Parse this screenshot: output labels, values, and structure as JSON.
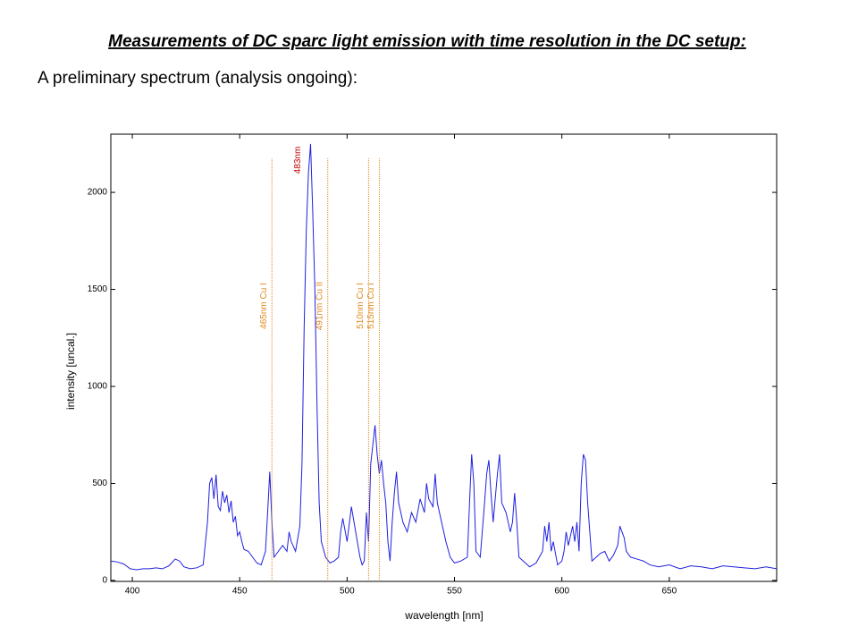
{
  "chart_data": {
    "type": "line",
    "title": "Measurements of DC sparc light emission with time resolution in the DC setup:",
    "subtitle": "A preliminary spectrum (analysis ongoing):",
    "x_label": "wavelength [nm]",
    "y_label": "intensity [uncal.]",
    "xlim": [
      390,
      700
    ],
    "ylim": [
      -5,
      2300
    ],
    "xticks": [
      400,
      450,
      500,
      550,
      600,
      650
    ],
    "yticks": [
      0,
      500,
      1000,
      1500,
      2000
    ],
    "x": [
      390,
      393,
      396,
      399,
      402,
      405,
      408,
      411,
      414,
      417,
      420,
      422,
      424,
      427,
      430,
      433,
      435,
      436,
      437,
      438,
      439,
      440,
      441,
      442,
      443,
      444,
      445,
      446,
      447,
      448,
      449,
      450,
      451,
      452,
      454,
      456,
      458,
      460,
      462,
      463,
      464,
      465,
      466,
      468,
      470,
      472,
      473,
      474,
      476,
      478,
      479,
      480,
      481,
      482,
      483,
      484,
      485,
      486,
      487,
      488,
      490,
      492,
      494,
      496,
      497,
      498,
      500,
      502,
      504,
      506,
      507,
      508,
      509,
      510,
      511,
      512,
      513,
      514,
      515,
      516,
      517,
      518,
      519,
      520,
      521,
      522,
      523,
      524,
      526,
      528,
      530,
      532,
      534,
      536,
      537,
      538,
      540,
      541,
      542,
      544,
      546,
      548,
      550,
      553,
      556,
      557,
      558,
      559,
      560,
      562,
      564,
      565,
      566,
      567,
      568,
      570,
      571,
      572,
      574,
      576,
      577,
      578,
      579,
      580,
      582,
      585,
      588,
      591,
      592,
      593,
      594,
      595,
      596,
      598,
      600,
      601,
      602,
      603,
      605,
      606,
      607,
      608,
      609,
      610,
      611,
      612,
      613,
      614,
      616,
      618,
      620,
      622,
      624,
      626,
      627,
      628,
      629,
      630,
      632,
      635,
      638,
      641,
      645,
      650,
      655,
      660,
      665,
      670,
      675,
      680,
      685,
      690,
      695,
      700
    ],
    "series": [
      {
        "color": "#2020e0",
        "values": [
          100,
          95,
          85,
          60,
          55,
          60,
          60,
          65,
          60,
          75,
          110,
          100,
          70,
          60,
          65,
          80,
          300,
          500,
          530,
          420,
          545,
          380,
          360,
          460,
          400,
          440,
          350,
          410,
          300,
          330,
          230,
          250,
          200,
          160,
          150,
          120,
          90,
          80,
          150,
          350,
          560,
          300,
          120,
          150,
          180,
          150,
          250,
          200,
          150,
          280,
          600,
          1300,
          1800,
          2100,
          2250,
          1900,
          1500,
          900,
          400,
          200,
          120,
          90,
          100,
          120,
          250,
          320,
          200,
          380,
          250,
          120,
          80,
          100,
          350,
          200,
          600,
          700,
          800,
          650,
          550,
          620,
          500,
          400,
          200,
          100,
          300,
          450,
          560,
          400,
          300,
          250,
          350,
          300,
          420,
          350,
          500,
          420,
          380,
          550,
          400,
          300,
          200,
          120,
          90,
          100,
          120,
          400,
          650,
          500,
          150,
          120,
          400,
          550,
          620,
          450,
          300,
          550,
          650,
          400,
          350,
          250,
          300,
          450,
          300,
          120,
          100,
          70,
          90,
          150,
          280,
          200,
          300,
          150,
          200,
          80,
          100,
          150,
          250,
          180,
          280,
          200,
          300,
          150,
          500,
          650,
          620,
          400,
          250,
          100,
          120,
          140,
          150,
          100,
          130,
          180,
          280,
          250,
          220,
          150,
          120,
          110,
          100,
          80,
          70,
          80,
          60,
          75,
          70,
          60,
          75,
          70,
          65,
          60,
          70,
          60
        ]
      }
    ],
    "annotations": [
      {
        "text": "465nm Cu I",
        "x": 465
      },
      {
        "text": "491nm Cu II",
        "x": 491
      },
      {
        "text": "510nm Cu I",
        "x": 510
      },
      {
        "text": "515nm Cu I",
        "x": 515
      }
    ],
    "annotation_color": "#e08a20",
    "peak_label": {
      "text": "483nm",
      "x": 483,
      "color": "#c00000"
    }
  }
}
